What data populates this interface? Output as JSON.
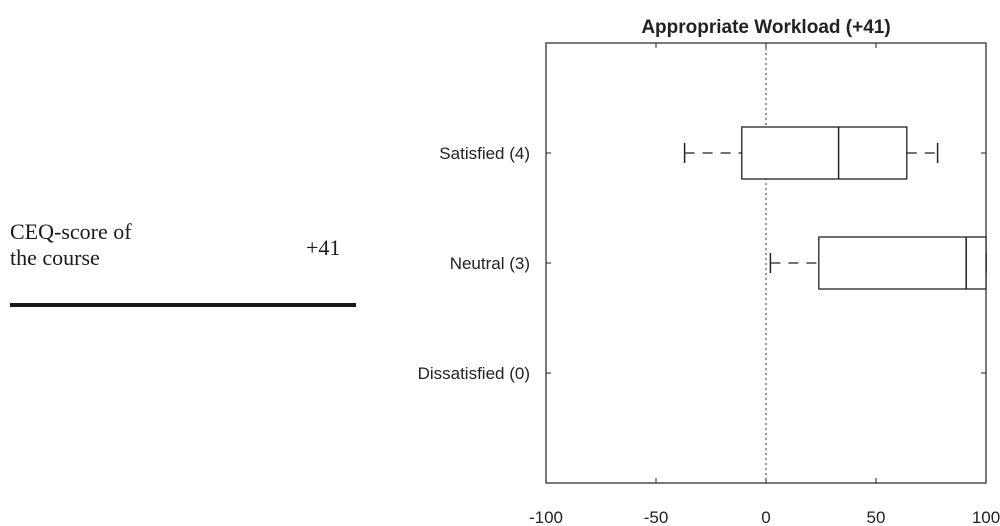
{
  "side_panel": {
    "label_line_1": "CEQ-score of",
    "label_line_2": "the course",
    "value": "+41"
  },
  "chart_data": {
    "type": "boxplot",
    "orientation": "horizontal",
    "title": "Appropriate Workload (+41)",
    "xlabel": "",
    "ylabel": "",
    "xlim": [
      -100,
      100
    ],
    "xticks": [
      -100,
      -50,
      0,
      50,
      100
    ],
    "reference_line": 0,
    "categories": [
      "Satisfied (4)",
      "Neutral (3)",
      "Dissatisfied (0)"
    ],
    "boxes": [
      {
        "category": "Satisfied (4)",
        "whisker_low": -37,
        "q1": -11,
        "median": 33,
        "q3": 64,
        "whisker_high": 78
      },
      {
        "category": "Neutral (3)",
        "whisker_low": 2,
        "q1": 24,
        "median": 91,
        "q3": 100,
        "whisker_high": 100
      },
      {
        "category": "Dissatisfied (0)",
        "whisker_low": null,
        "q1": null,
        "median": null,
        "q3": null,
        "whisker_high": null
      }
    ],
    "grid": false
  }
}
